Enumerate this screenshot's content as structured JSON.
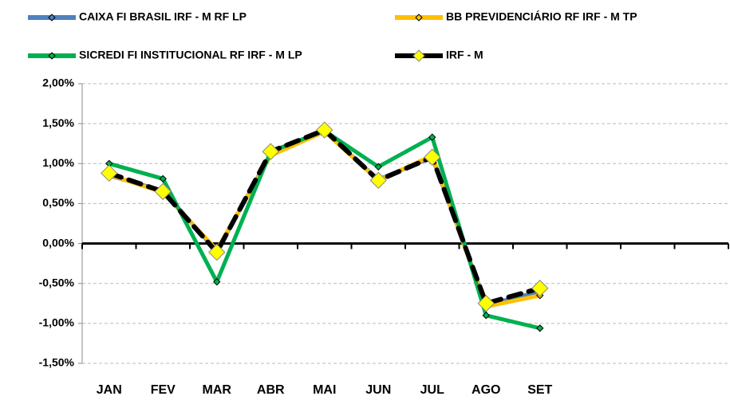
{
  "chart_data": {
    "type": "line",
    "categories": [
      "JAN",
      "FEV",
      "MAR",
      "ABR",
      "MAI",
      "JUN",
      "JUL",
      "AGO",
      "SET",
      null,
      null,
      null
    ],
    "series": [
      {
        "name": "CAIXA FI BRASIL IRF - M RF LP",
        "color": "#4f81bd",
        "values": [
          0.85,
          0.66,
          -0.1,
          1.12,
          1.4,
          0.8,
          1.08,
          -0.77,
          -0.6,
          null,
          null,
          null
        ]
      },
      {
        "name": "BB PREVIDENCIÁRIO RF IRF - M TP",
        "color": "#ffc000",
        "values": [
          0.86,
          0.64,
          -0.08,
          1.1,
          1.4,
          0.79,
          1.1,
          -0.79,
          -0.65,
          null,
          null,
          null
        ]
      },
      {
        "name": "SICREDI FI INSTITUCIONAL RF IRF - M LP",
        "color": "#00b050",
        "values": [
          1.0,
          0.81,
          -0.48,
          1.15,
          1.41,
          0.96,
          1.33,
          -0.9,
          -1.06,
          null,
          null,
          null
        ]
      },
      {
        "name": "IRF - M",
        "color": "#000000",
        "style": "dashed",
        "marker_color": "#ffff00",
        "values": [
          0.88,
          0.65,
          -0.11,
          1.15,
          1.42,
          0.79,
          1.08,
          -0.75,
          -0.56,
          null,
          null,
          null
        ]
      }
    ],
    "ylim": [
      -1.5,
      2
    ],
    "yticks": [
      {
        "value": -1.5,
        "label": "-1,50%"
      },
      {
        "value": -1,
        "label": "-1,00%"
      },
      {
        "value": -0.5,
        "label": "-0,50%"
      },
      {
        "value": 0,
        "label": "0,00%"
      },
      {
        "value": 0.5,
        "label": "0,50%"
      },
      {
        "value": 1,
        "label": "1,00%"
      },
      {
        "value": 1.5,
        "label": "1,50%"
      },
      {
        "value": 2,
        "label": "2,00%"
      }
    ],
    "grid": true,
    "legend": "top"
  }
}
